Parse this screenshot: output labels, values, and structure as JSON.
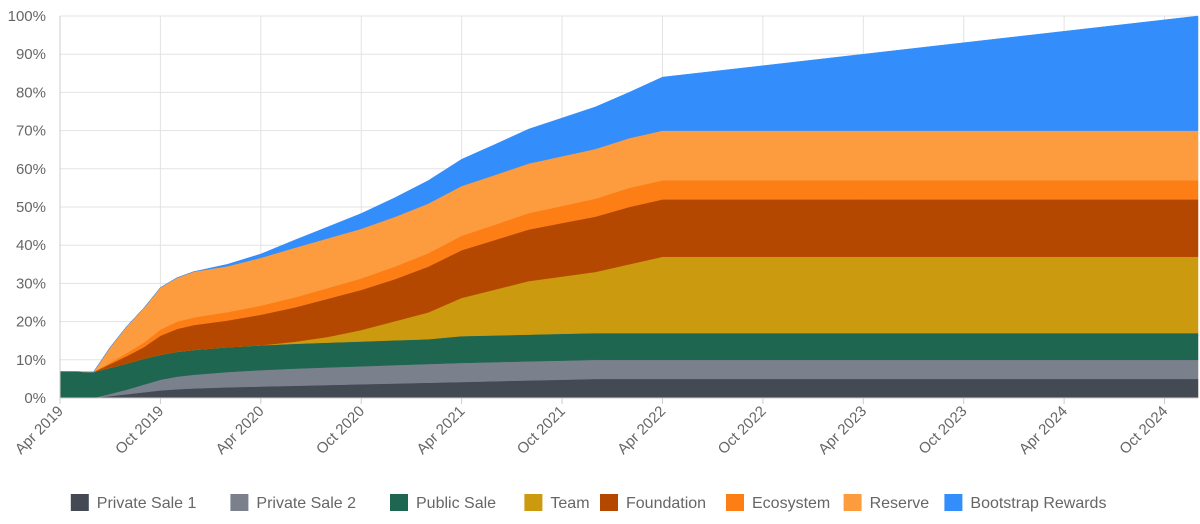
{
  "chart_data": {
    "type": "area",
    "stacked": true,
    "title": "",
    "xlabel": "",
    "ylabel": "",
    "ylim": [
      0,
      100
    ],
    "y_unit": "%",
    "grid": true,
    "legend_position": "bottom",
    "xlim": [
      "2019-04",
      "2024-12"
    ],
    "x_tick_labels": [
      "Apr 2019",
      "Oct 2019",
      "Apr 2020",
      "Oct 2020",
      "Apr 2021",
      "Oct 2021",
      "Apr 2022",
      "Oct 2022",
      "Apr 2023",
      "Oct 2023",
      "Apr 2024",
      "Oct 2024"
    ],
    "y_tick_labels": [
      "0%",
      "10%",
      "20%",
      "30%",
      "40%",
      "50%",
      "60%",
      "70%",
      "80%",
      "90%",
      "100%"
    ],
    "x": [
      "2019-04",
      "2019-06",
      "2019-07",
      "2019-08",
      "2019-09",
      "2019-10",
      "2019-11",
      "2019-12",
      "2020-02",
      "2020-04",
      "2020-06",
      "2020-08",
      "2020-10",
      "2020-12",
      "2021-02",
      "2021-04",
      "2021-06",
      "2021-08",
      "2021-10",
      "2021-12",
      "2022-02",
      "2022-04",
      "2022-10",
      "2023-04",
      "2023-10",
      "2024-04",
      "2024-12"
    ],
    "series": [
      {
        "name": "Private Sale 1",
        "color": "#434a54",
        "values": [
          0,
          0,
          0.5,
          1,
          1.5,
          2,
          2.3,
          2.5,
          2.8,
          3,
          3.2,
          3.4,
          3.6,
          3.8,
          4,
          4.2,
          4.4,
          4.6,
          4.8,
          5,
          5,
          5,
          5,
          5,
          5,
          5,
          5
        ]
      },
      {
        "name": "Private Sale 2",
        "color": "#7a818d",
        "values": [
          0,
          0,
          0.6,
          1.2,
          2,
          2.8,
          3.3,
          3.6,
          4,
          4.3,
          4.5,
          4.6,
          4.7,
          4.8,
          4.9,
          5,
          5,
          5,
          5,
          5,
          5,
          5,
          5,
          5,
          5,
          5,
          5
        ]
      },
      {
        "name": "Public Sale",
        "color": "#1f6650",
        "values": [
          7,
          6.8,
          6.8,
          6.8,
          6.8,
          6.5,
          6.5,
          6.5,
          6.5,
          6.5,
          6.5,
          6.5,
          6.5,
          6.5,
          6.5,
          7,
          7,
          7,
          7,
          7,
          7,
          7,
          7,
          7,
          7,
          7,
          7
        ]
      },
      {
        "name": "Team",
        "color": "#cc9a0e",
        "values": [
          0,
          0,
          0,
          0,
          0,
          0,
          0,
          0,
          0,
          0,
          0.5,
          1.5,
          3,
          5,
          7,
          10,
          12,
          14,
          15,
          16,
          18,
          20,
          20,
          20,
          20,
          20,
          20
        ]
      },
      {
        "name": "Foundation",
        "color": "#b54800",
        "values": [
          0,
          0,
          1,
          2,
          3,
          5,
          6,
          6.5,
          7,
          8,
          9,
          10,
          10.5,
          11,
          12,
          12.5,
          13,
          13.5,
          14,
          14.5,
          15,
          15,
          15,
          15,
          15,
          15,
          15
        ]
      },
      {
        "name": "Ecosystem",
        "color": "#fd7e14",
        "values": [
          0,
          0,
          0.4,
          0.8,
          1.2,
          1.6,
          1.9,
          2,
          2.2,
          2.4,
          2.6,
          2.8,
          3,
          3.3,
          3.5,
          3.8,
          4,
          4.3,
          4.5,
          4.7,
          5,
          5,
          5,
          5,
          5,
          5,
          5
        ]
      },
      {
        "name": "Reserve",
        "color": "#fd9c3f",
        "values": [
          0,
          0,
          4,
          7,
          9,
          11,
          11.5,
          12,
          12,
          12.5,
          13,
          13,
          13,
          13,
          13,
          13,
          13,
          13,
          13,
          13,
          13,
          13,
          13,
          13,
          13,
          13,
          13
        ]
      },
      {
        "name": "Bootstrap Rewards",
        "color": "#338efb",
        "values": [
          0,
          0,
          0,
          0,
          0,
          0,
          0,
          0,
          0.5,
          1,
          2,
          3,
          4,
          5,
          6,
          7,
          8,
          9,
          10,
          11,
          12,
          14,
          17,
          20,
          23,
          26,
          30
        ]
      }
    ]
  }
}
